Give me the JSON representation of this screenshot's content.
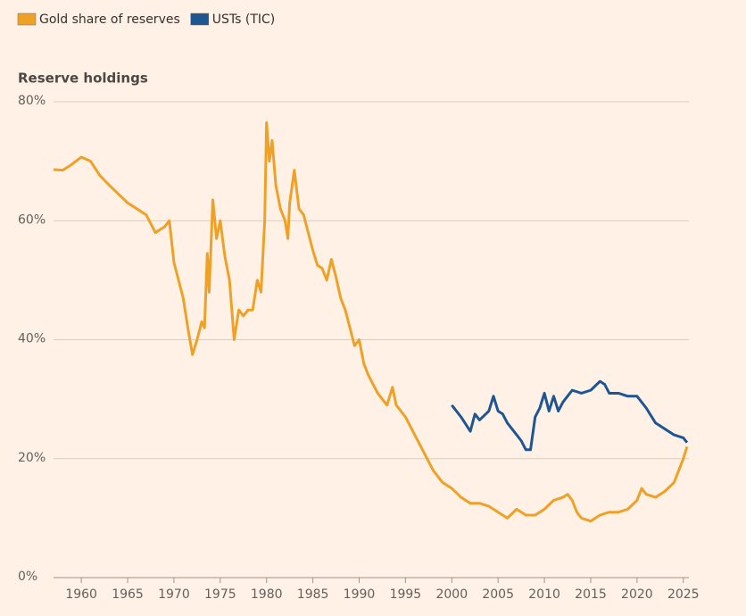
{
  "chart_data": {
    "type": "line",
    "ylabel": "Reserve holdings",
    "xlim": [
      1957,
      2025.6
    ],
    "xticks": [
      1960,
      1965,
      1970,
      1975,
      1980,
      1985,
      1990,
      1995,
      2000,
      2005,
      2010,
      2015,
      2020,
      2025
    ],
    "ylim": [
      0,
      80
    ],
    "yticks": [
      {
        "value": 0,
        "label": "0%"
      },
      {
        "value": 20,
        "label": "20%"
      },
      {
        "value": 40,
        "label": "40%"
      },
      {
        "value": 60,
        "label": "60%"
      },
      {
        "value": 80,
        "label": "80%"
      }
    ],
    "grid": true,
    "legend": "top-left",
    "series": [
      {
        "name": "Gold share of reserves",
        "color": "#eea126",
        "x": [
          1957,
          1958,
          1959,
          1960,
          1961,
          1962,
          1963,
          1964,
          1965,
          1966,
          1967,
          1968,
          1969,
          1969.5,
          1970,
          1971,
          1971.5,
          1972,
          1972.5,
          1973,
          1973.3,
          1973.6,
          1973.8,
          1974.2,
          1974.6,
          1975,
          1975.5,
          1976,
          1976.5,
          1977,
          1977.5,
          1978,
          1978.5,
          1979,
          1979.4,
          1979.8,
          1980,
          1980.3,
          1980.6,
          1981,
          1981.5,
          1982,
          1982.3,
          1982.5,
          1983,
          1983.5,
          1984,
          1985,
          1985.5,
          1986,
          1986.5,
          1987,
          1987.5,
          1988,
          1988.5,
          1989,
          1989.5,
          1990,
          1990.5,
          1991,
          1992,
          1993,
          1993.6,
          1994,
          1995,
          1996,
          1997,
          1998,
          1999,
          2000,
          2001,
          2002,
          2003,
          2004,
          2005,
          2006,
          2007,
          2008,
          2009,
          2010,
          2011,
          2012,
          2012.5,
          2013,
          2013.5,
          2014,
          2015,
          2016,
          2017,
          2018,
          2019,
          2020,
          2020.5,
          2021,
          2022,
          2023,
          2024,
          2024.5,
          2025,
          2025.4
        ],
        "values": [
          68.6,
          68.5,
          69.5,
          70.7,
          70,
          67.6,
          66,
          64.5,
          63,
          62,
          61,
          58,
          59,
          60,
          53,
          47,
          42,
          37.5,
          40,
          43,
          42,
          54.5,
          48,
          63.5,
          57,
          60,
          54,
          50,
          40,
          45,
          44,
          45,
          45,
          50,
          48,
          60,
          76.5,
          70,
          73.5,
          66,
          62,
          60,
          57,
          63,
          68.5,
          62,
          61,
          55,
          52.5,
          52,
          50,
          53.5,
          50.5,
          47,
          45,
          42,
          39,
          40,
          36,
          34,
          31,
          29,
          32,
          29,
          27,
          24,
          21,
          18,
          16,
          15,
          13.5,
          12.5,
          12.5,
          12,
          11,
          10,
          11.5,
          10.5,
          10.5,
          11.5,
          13,
          13.5,
          14,
          13,
          11,
          10,
          9.5,
          10.5,
          11,
          11,
          11.5,
          13,
          15,
          14,
          13.5,
          14.5,
          16,
          18,
          20,
          22
        ]
      },
      {
        "name": "USTs (TIC)",
        "color": "#1f5591",
        "x": [
          2000,
          2000.5,
          2001,
          2002,
          2002.5,
          2003,
          2004,
          2004.5,
          2005,
          2005.5,
          2006,
          2007,
          2007.5,
          2008,
          2008.5,
          2009,
          2009.5,
          2010,
          2010.5,
          2011,
          2011.5,
          2012,
          2013,
          2014,
          2015,
          2016,
          2016.5,
          2017,
          2018,
          2019,
          2020,
          2021,
          2022,
          2023,
          2024,
          2025,
          2025.4
        ],
        "values": [
          29,
          28,
          27,
          24.6,
          27.5,
          26.5,
          28,
          30.5,
          28,
          27.5,
          26,
          24,
          23,
          21.5,
          21.5,
          27,
          28.5,
          31,
          28,
          30.5,
          28,
          29.5,
          31.5,
          31,
          31.5,
          33,
          32.5,
          31,
          31,
          30.5,
          30.5,
          28.5,
          26,
          25,
          24,
          23.5,
          22.7
        ]
      }
    ]
  }
}
